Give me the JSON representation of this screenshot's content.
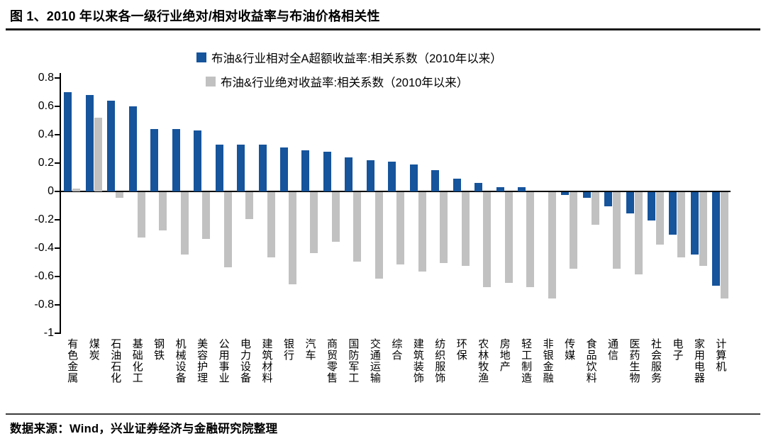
{
  "header": {
    "title": "图 1、2010 年以来各一级行业绝对/相对收益率与布油价格相关性"
  },
  "footer": {
    "source": "数据来源：Wind，兴业证券经济与金融研究院整理"
  },
  "chart_data": {
    "type": "bar",
    "title": "图 1、2010 年以来各一级行业绝对/相对收益率与布油价格相关性",
    "categories": [
      "有色金属",
      "煤炭",
      "石油石化",
      "基础化工",
      "钢铁",
      "机械设备",
      "美容护理",
      "公用事业",
      "电力设备",
      "建筑材料",
      "银行",
      "汽车",
      "商贸零售",
      "国防军工",
      "交通运输",
      "综合",
      "建筑装饰",
      "纺织服饰",
      "环保",
      "农林牧渔",
      "房地产",
      "轻工制造",
      "非银金融",
      "传媒",
      "食品饮料",
      "通信",
      "医药生物",
      "社会服务",
      "电子",
      "家用电器",
      "计算机"
    ],
    "series": [
      {
        "name": "布油&行业相对全A超额收益率:相关系数（2010年以来）",
        "color": "#16549C",
        "values": [
          0.7,
          0.68,
          0.64,
          0.6,
          0.44,
          0.44,
          0.43,
          0.33,
          0.33,
          0.33,
          0.31,
          0.29,
          0.28,
          0.24,
          0.22,
          0.21,
          0.19,
          0.15,
          0.09,
          0.06,
          0.03,
          0.03,
          0.0,
          -0.02,
          -0.04,
          -0.1,
          -0.15,
          -0.2,
          -0.3,
          -0.44,
          -0.66
        ]
      },
      {
        "name": "布油&行业绝对收益率:相关系数（2010年以来）",
        "color": "#C1C1C1",
        "values": [
          0.02,
          0.52,
          -0.04,
          -0.32,
          -0.27,
          -0.44,
          -0.33,
          -0.53,
          -0.19,
          -0.46,
          -0.65,
          -0.43,
          -0.35,
          -0.49,
          -0.61,
          -0.51,
          -0.56,
          -0.5,
          -0.52,
          -0.67,
          -0.64,
          -0.67,
          -0.75,
          -0.54,
          -0.23,
          -0.54,
          -0.58,
          -0.37,
          -0.46,
          -0.52,
          -0.75
        ]
      }
    ],
    "ylim": [
      -1,
      0.8
    ],
    "ytick_labels": [
      "0.8",
      "0.6",
      "0.4",
      "0.2",
      "0",
      "-0.2",
      "-0.4",
      "-0.6",
      "-0.8",
      "-1"
    ],
    "yticks": [
      0.8,
      0.6,
      0.4,
      0.2,
      0,
      -0.2,
      -0.4,
      -0.6,
      -0.8,
      -1
    ],
    "xlabel": "",
    "ylabel": "",
    "grid": false,
    "legend_position": "top-center",
    "zero_axis": true
  }
}
